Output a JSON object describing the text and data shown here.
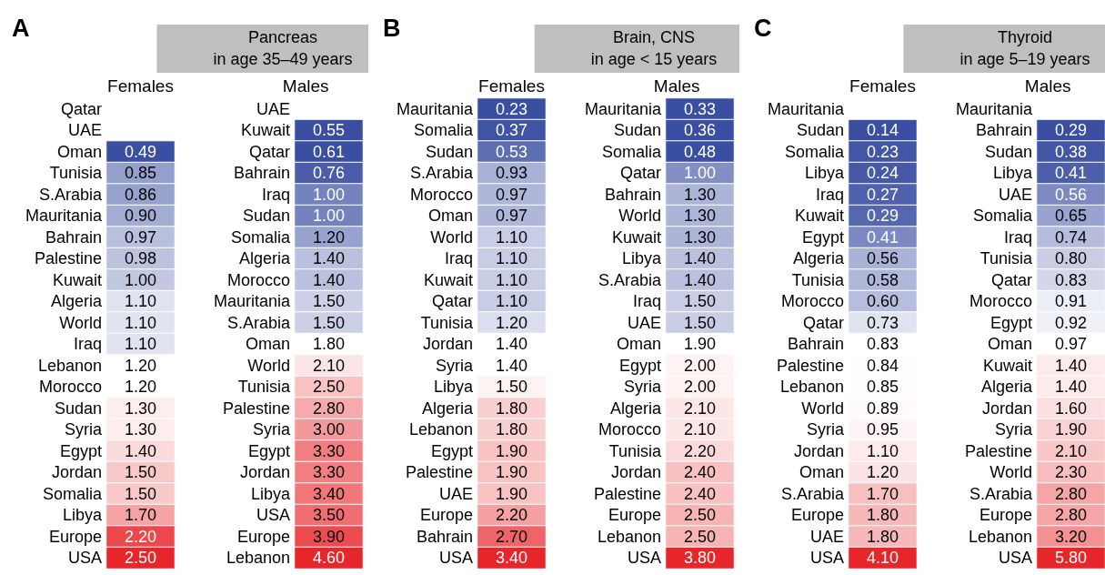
{
  "chart_data": [
    {
      "type": "heatmap",
      "annotations": [
        "A"
      ],
      "categories": [
        "Females"
      ],
      "y_categories": [
        "Qatar",
        "UAE",
        "Oman",
        "Tunisia",
        "S.Arabia",
        "Mauritania",
        "Bahrain",
        "Palestine",
        "Kuwait",
        "Algeria",
        "World",
        "Iraq",
        "Lebanon",
        "Morocco",
        "Sudan",
        "Syria",
        "Egypt",
        "Jordan",
        "Somalia",
        "Libya",
        "Europe",
        "USA"
      ],
      "cells": [
        [
          null
        ],
        [
          null
        ],
        [
          0.49
        ],
        [
          0.85
        ],
        [
          0.86
        ],
        [
          0.9
        ],
        [
          0.97
        ],
        [
          0.98
        ],
        [
          1.0
        ],
        [
          1.1
        ],
        [
          1.1
        ],
        [
          1.1
        ],
        [
          1.2
        ],
        [
          1.2
        ],
        [
          1.3
        ],
        [
          1.3
        ],
        [
          1.4
        ],
        [
          1.5
        ],
        [
          1.5
        ],
        [
          1.7
        ],
        [
          2.2
        ],
        [
          2.5
        ]
      ],
      "cell_labels": [
        [
          null
        ],
        [
          null
        ],
        [
          "0.49"
        ],
        [
          "0.85"
        ],
        [
          "0.86"
        ],
        [
          "0.90"
        ],
        [
          "0.97"
        ],
        [
          "0.98"
        ],
        [
          "1.00"
        ],
        [
          "1.10"
        ],
        [
          "1.10"
        ],
        [
          "1.10"
        ],
        [
          "1.20"
        ],
        [
          "1.20"
        ],
        [
          "1.30"
        ],
        [
          "1.30"
        ],
        [
          "1.40"
        ],
        [
          "1.50"
        ],
        [
          "1.50"
        ],
        [
          "1.70"
        ],
        [
          "2.20"
        ],
        [
          "2.50"
        ]
      ]
    },
    {
      "type": "heatmap",
      "title": "Pancreas\nin age 35–49 years",
      "categories": [
        "Males"
      ],
      "y_categories": [
        "UAE",
        "Kuwait",
        "Qatar",
        "Bahrain",
        "Iraq",
        "Sudan",
        "Somalia",
        "Algeria",
        "Morocco",
        "Mauritania",
        "S.Arabia",
        "Oman",
        "World",
        "Tunisia",
        "Palestine",
        "Syria",
        "Egypt",
        "Jordan",
        "Libya",
        "USA",
        "Europe",
        "Lebanon"
      ],
      "cells": [
        [
          null
        ],
        [
          0.55
        ],
        [
          0.61
        ],
        [
          0.76
        ],
        [
          1.0
        ],
        [
          1.0
        ],
        [
          1.2
        ],
        [
          1.4
        ],
        [
          1.4
        ],
        [
          1.5
        ],
        [
          1.5
        ],
        [
          1.8
        ],
        [
          2.1
        ],
        [
          2.5
        ],
        [
          2.8
        ],
        [
          3.0
        ],
        [
          3.3
        ],
        [
          3.3
        ],
        [
          3.4
        ],
        [
          3.5
        ],
        [
          3.9
        ],
        [
          4.6
        ]
      ],
      "cell_labels": [
        [
          null
        ],
        [
          "0.55"
        ],
        [
          "0.61"
        ],
        [
          "0.76"
        ],
        [
          "1.00"
        ],
        [
          "1.00"
        ],
        [
          "1.20"
        ],
        [
          "1.40"
        ],
        [
          "1.40"
        ],
        [
          "1.50"
        ],
        [
          "1.50"
        ],
        [
          "1.80"
        ],
        [
          "2.10"
        ],
        [
          "2.50"
        ],
        [
          "2.80"
        ],
        [
          "3.00"
        ],
        [
          "3.30"
        ],
        [
          "3.30"
        ],
        [
          "3.40"
        ],
        [
          "3.50"
        ],
        [
          "3.90"
        ],
        [
          "4.60"
        ]
      ]
    },
    {
      "type": "heatmap",
      "annotations": [
        "B"
      ],
      "categories": [
        "Females"
      ],
      "y_categories": [
        "Mauritania",
        "Somalia",
        "Sudan",
        "S.Arabia",
        "Morocco",
        "Oman",
        "World",
        "Iraq",
        "Kuwait",
        "Qatar",
        "Tunisia",
        "Jordan",
        "Syria",
        "Libya",
        "Algeria",
        "Lebanon",
        "Egypt",
        "Palestine",
        "UAE",
        "Europe",
        "Bahrain",
        "USA"
      ],
      "cells": [
        [
          0.23
        ],
        [
          0.37
        ],
        [
          0.53
        ],
        [
          0.93
        ],
        [
          0.97
        ],
        [
          0.97
        ],
        [
          1.1
        ],
        [
          1.1
        ],
        [
          1.1
        ],
        [
          1.1
        ],
        [
          1.2
        ],
        [
          1.4
        ],
        [
          1.4
        ],
        [
          1.5
        ],
        [
          1.8
        ],
        [
          1.8
        ],
        [
          1.9
        ],
        [
          1.9
        ],
        [
          1.9
        ],
        [
          2.2
        ],
        [
          2.7
        ],
        [
          3.4
        ]
      ],
      "cell_labels": [
        [
          "0.23"
        ],
        [
          "0.37"
        ],
        [
          "0.53"
        ],
        [
          "0.93"
        ],
        [
          "0.97"
        ],
        [
          "0.97"
        ],
        [
          "1.10"
        ],
        [
          "1.10"
        ],
        [
          "1.10"
        ],
        [
          "1.10"
        ],
        [
          "1.20"
        ],
        [
          "1.40"
        ],
        [
          "1.40"
        ],
        [
          "1.50"
        ],
        [
          "1.80"
        ],
        [
          "1.80"
        ],
        [
          "1.90"
        ],
        [
          "1.90"
        ],
        [
          "1.90"
        ],
        [
          "2.20"
        ],
        [
          "2.70"
        ],
        [
          "3.40"
        ]
      ]
    },
    {
      "type": "heatmap",
      "title": "Brain, CNS\nin age < 15 years",
      "categories": [
        "Males"
      ],
      "y_categories": [
        "Mauritania",
        "Sudan",
        "Somalia",
        "Qatar",
        "Bahrain",
        "World",
        "Kuwait",
        "Libya",
        "S.Arabia",
        "Iraq",
        "UAE",
        "Oman",
        "Egypt",
        "Syria",
        "Algeria",
        "Morocco",
        "Tunisia",
        "Jordan",
        "Palestine",
        "Europe",
        "Lebanon",
        "USA"
      ],
      "cells": [
        [
          0.33
        ],
        [
          0.36
        ],
        [
          0.48
        ],
        [
          1.0
        ],
        [
          1.3
        ],
        [
          1.3
        ],
        [
          1.3
        ],
        [
          1.4
        ],
        [
          1.4
        ],
        [
          1.5
        ],
        [
          1.5
        ],
        [
          1.9
        ],
        [
          2.0
        ],
        [
          2.0
        ],
        [
          2.1
        ],
        [
          2.1
        ],
        [
          2.2
        ],
        [
          2.4
        ],
        [
          2.4
        ],
        [
          2.5
        ],
        [
          2.5
        ],
        [
          3.8
        ]
      ],
      "cell_labels": [
        [
          "0.33"
        ],
        [
          "0.36"
        ],
        [
          "0.48"
        ],
        [
          "1.00"
        ],
        [
          "1.30"
        ],
        [
          "1.30"
        ],
        [
          "1.30"
        ],
        [
          "1.40"
        ],
        [
          "1.40"
        ],
        [
          "1.50"
        ],
        [
          "1.50"
        ],
        [
          "1.90"
        ],
        [
          "2.00"
        ],
        [
          "2.00"
        ],
        [
          "2.10"
        ],
        [
          "2.10"
        ],
        [
          "2.20"
        ],
        [
          "2.40"
        ],
        [
          "2.40"
        ],
        [
          "2.50"
        ],
        [
          "2.50"
        ],
        [
          "3.80"
        ]
      ]
    },
    {
      "type": "heatmap",
      "annotations": [
        "C"
      ],
      "categories": [
        "Females"
      ],
      "y_categories": [
        "Mauritania",
        "Sudan",
        "Somalia",
        "Libya",
        "Iraq",
        "Kuwait",
        "Egypt",
        "Algeria",
        "Tunisia",
        "Morocco",
        "Qatar",
        "Bahrain",
        "Palestine",
        "Lebanon",
        "World",
        "Syria",
        "Jordan",
        "Oman",
        "S.Arabia",
        "Europe",
        "UAE",
        "USA"
      ],
      "cells": [
        [
          null
        ],
        [
          0.14
        ],
        [
          0.23
        ],
        [
          0.24
        ],
        [
          0.27
        ],
        [
          0.29
        ],
        [
          0.41
        ],
        [
          0.56
        ],
        [
          0.58
        ],
        [
          0.6
        ],
        [
          0.73
        ],
        [
          0.83
        ],
        [
          0.84
        ],
        [
          0.85
        ],
        [
          0.89
        ],
        [
          0.95
        ],
        [
          1.1
        ],
        [
          1.2
        ],
        [
          1.7
        ],
        [
          1.8
        ],
        [
          1.8
        ],
        [
          4.1
        ]
      ],
      "cell_labels": [
        [
          null
        ],
        [
          "0.14"
        ],
        [
          "0.23"
        ],
        [
          "0.24"
        ],
        [
          "0.27"
        ],
        [
          "0.29"
        ],
        [
          "0.41"
        ],
        [
          "0.56"
        ],
        [
          "0.58"
        ],
        [
          "0.60"
        ],
        [
          "0.73"
        ],
        [
          "0.83"
        ],
        [
          "0.84"
        ],
        [
          "0.85"
        ],
        [
          "0.89"
        ],
        [
          "0.95"
        ],
        [
          "1.10"
        ],
        [
          "1.20"
        ],
        [
          "1.70"
        ],
        [
          "1.80"
        ],
        [
          "1.80"
        ],
        [
          "4.10"
        ]
      ]
    },
    {
      "type": "heatmap",
      "title": "Thyroid\nin age 5–19 years",
      "categories": [
        "Males"
      ],
      "y_categories": [
        "Mauritania",
        "Bahrain",
        "Sudan",
        "Libya",
        "UAE",
        "Somalia",
        "Iraq",
        "Tunisia",
        "Qatar",
        "Morocco",
        "Egypt",
        "Oman",
        "Kuwait",
        "Algeria",
        "Jordan",
        "Syria",
        "Palestine",
        "World",
        "S.Arabia",
        "Europe",
        "Lebanon",
        "USA"
      ],
      "cells": [
        [
          null
        ],
        [
          0.29
        ],
        [
          0.38
        ],
        [
          0.41
        ],
        [
          0.56
        ],
        [
          0.65
        ],
        [
          0.74
        ],
        [
          0.8
        ],
        [
          0.83
        ],
        [
          0.91
        ],
        [
          0.92
        ],
        [
          0.97
        ],
        [
          1.4
        ],
        [
          1.4
        ],
        [
          1.6
        ],
        [
          1.9
        ],
        [
          2.1
        ],
        [
          2.3
        ],
        [
          2.8
        ],
        [
          2.8
        ],
        [
          3.2
        ],
        [
          5.8
        ]
      ],
      "cell_labels": [
        [
          null
        ],
        [
          "0.29"
        ],
        [
          "0.38"
        ],
        [
          "0.41"
        ],
        [
          "0.56"
        ],
        [
          "0.65"
        ],
        [
          "0.74"
        ],
        [
          "0.80"
        ],
        [
          "0.83"
        ],
        [
          "0.91"
        ],
        [
          "0.92"
        ],
        [
          "0.97"
        ],
        [
          "1.40"
        ],
        [
          "1.40"
        ],
        [
          "1.60"
        ],
        [
          "1.90"
        ],
        [
          "2.10"
        ],
        [
          "2.30"
        ],
        [
          "2.80"
        ],
        [
          "2.80"
        ],
        [
          "3.20"
        ],
        [
          "5.80"
        ]
      ]
    }
  ]
}
